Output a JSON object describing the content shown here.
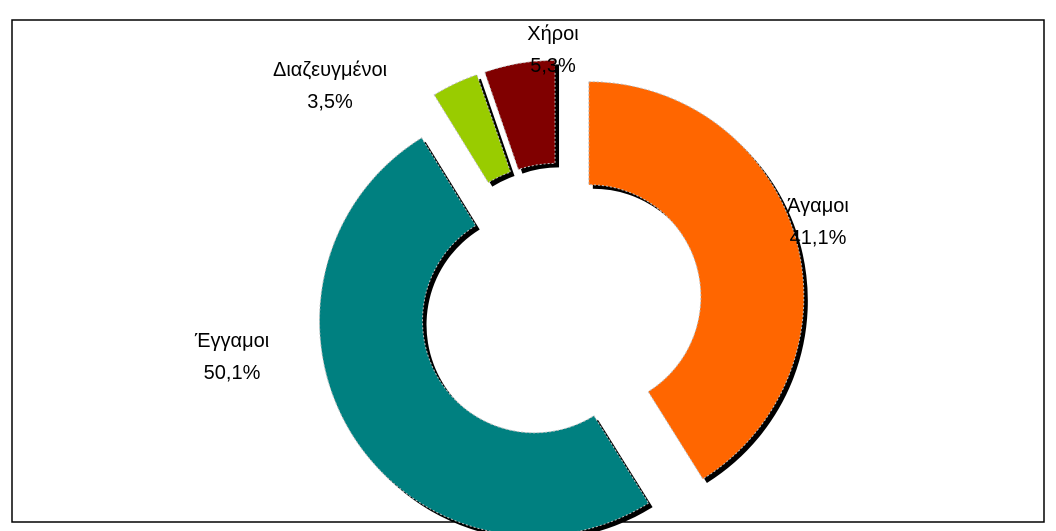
{
  "chart_data": {
    "type": "donut",
    "categories": [
      "Άγαμοι",
      "Έγγαμοι",
      "Διαζευγμένοι",
      "Χήροι"
    ],
    "values": [
      41.1,
      50.1,
      3.5,
      5.3
    ],
    "value_labels": [
      "41,1%",
      "50,1%",
      "3,5%",
      "5,3%"
    ],
    "colors": [
      "#ff6600",
      "#008080",
      "#99cc00",
      "#800000"
    ]
  }
}
